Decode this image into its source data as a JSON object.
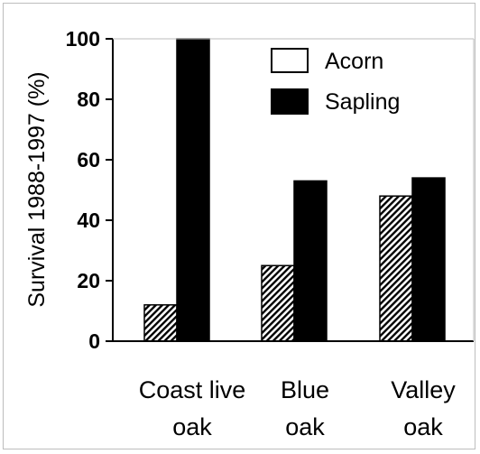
{
  "chart_data": {
    "type": "bar",
    "ylabel": "Survival 1988-1997 (%)",
    "ylim": [
      0,
      100
    ],
    "yticks": [
      0,
      20,
      40,
      60,
      80,
      100
    ],
    "categories": [
      [
        "Coast live",
        "oak"
      ],
      [
        "Blue",
        "oak"
      ],
      [
        "Valley",
        "oak"
      ]
    ],
    "series": [
      {
        "name": "Acorn",
        "values": [
          12,
          25,
          48
        ],
        "pattern": "diagonal-hatch",
        "color": "#ffffff"
      },
      {
        "name": "Sapling",
        "values": [
          100,
          53,
          54
        ],
        "pattern": "solid",
        "color": "#000000"
      }
    ],
    "legend": {
      "position": "top-right"
    },
    "grid": false
  }
}
